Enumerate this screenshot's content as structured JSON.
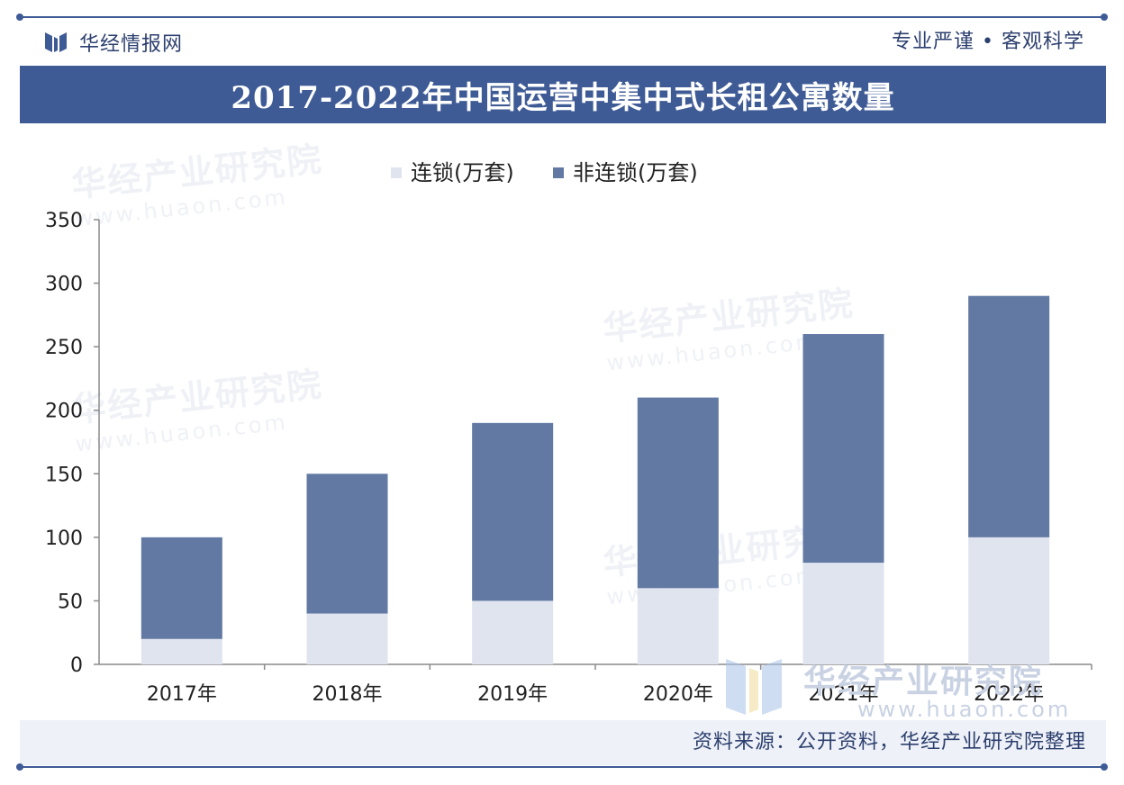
{
  "header": {
    "brand_name": "华经情报网",
    "slogan": "专业严谨 • 客观科学"
  },
  "title": "2017-2022年中国运营中集中式长租公寓数量",
  "footer": {
    "source": "资料来源：公开资料，华经产业研究院整理"
  },
  "watermark": {
    "text": "华经产业研究院",
    "url": "www.huaon.com"
  },
  "colors": {
    "accent": "#3f5b96",
    "series_chain": "#dfe4ef",
    "series_nonchain": "#6179a3"
  },
  "chart_data": {
    "type": "bar",
    "stacked": true,
    "categories": [
      "2017年",
      "2018年",
      "2019年",
      "2020年",
      "2021年",
      "2022年"
    ],
    "series": [
      {
        "name": "连锁(万套)",
        "values": [
          20,
          40,
          50,
          60,
          80,
          100
        ]
      },
      {
        "name": "非连锁(万套)",
        "values": [
          80,
          110,
          140,
          150,
          180,
          190
        ]
      }
    ],
    "ylim": [
      0,
      350
    ],
    "yticks": [
      0,
      50,
      100,
      150,
      200,
      250,
      300,
      350
    ],
    "legend": "top-center",
    "grid": false
  }
}
